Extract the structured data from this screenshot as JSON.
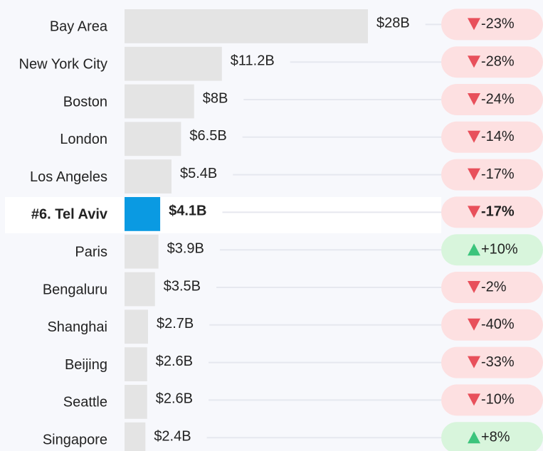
{
  "chart_data": {
    "type": "bar",
    "categories": [
      "Bay Area",
      "New York City",
      "Boston",
      "London",
      "Los Angeles",
      "#6. Tel Aviv",
      "Paris",
      "Bengaluru",
      "Shanghai",
      "Beijing",
      "Seattle",
      "Singapore"
    ],
    "values": [
      28,
      11.2,
      8,
      6.5,
      5.4,
      4.1,
      3.9,
      3.5,
      2.7,
      2.6,
      2.6,
      2.4
    ],
    "value_labels": [
      "$28B",
      "$11.2B",
      "$8B",
      "$6.5B",
      "$5.4B",
      "$4.1B",
      "$3.9B",
      "$3.5B",
      "$2.7B",
      "$2.6B",
      "$2.6B",
      "$2.4B"
    ],
    "color": "#e4e4e4",
    "highlight_color": "#0a9ae2",
    "highlight_index": 5,
    "change": {
      "values": [
        -23,
        -28,
        -24,
        -14,
        -17,
        -17,
        10,
        -2,
        -40,
        -33,
        -10,
        8
      ],
      "value_labels": [
        "-23%",
        "-28%",
        "-24%",
        "-14%",
        "-17%",
        "-17%",
        "+10%",
        "-2%",
        "-40%",
        "-33%",
        "-10%",
        "+8%"
      ],
      "negative_color": "#e8505b",
      "positive_color": "#3cc47c"
    }
  }
}
